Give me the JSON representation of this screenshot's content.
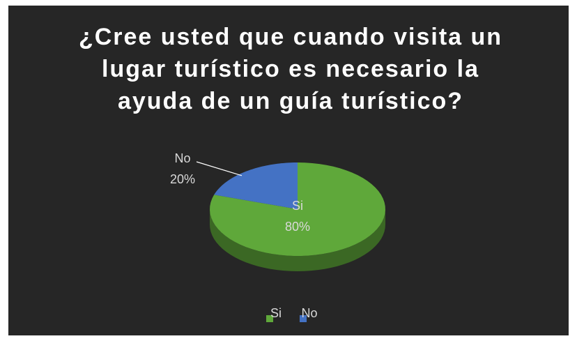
{
  "chart_data": {
    "type": "pie",
    "title": "¿Cree usted que cuando visita un lugar turístico es necesario la ayuda de un guía turístico?",
    "categories": [
      "Si",
      "No"
    ],
    "values": [
      80,
      20
    ],
    "value_labels": [
      "80%",
      "20%"
    ],
    "colors": [
      "#5fa83a",
      "#4472c4"
    ],
    "legend": "bottom"
  }
}
